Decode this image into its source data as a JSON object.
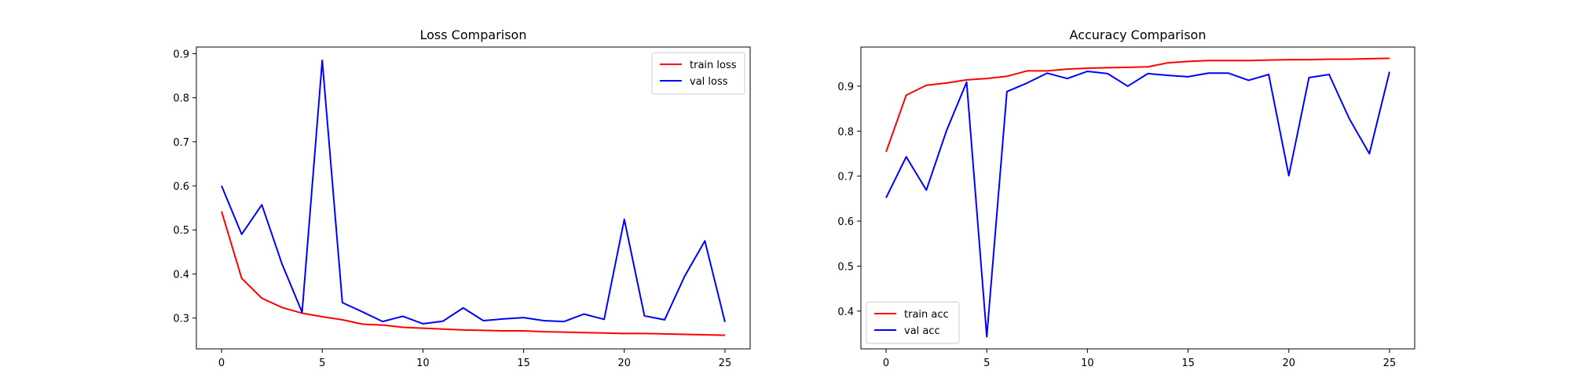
{
  "chart_data": [
    {
      "type": "line",
      "title": "Loss Comparison",
      "xlabel": "",
      "ylabel": "",
      "xlim": [
        -1.25,
        26.25
      ],
      "ylim": [
        0.23,
        0.915
      ],
      "xticks": [
        0,
        5,
        10,
        15,
        20,
        25
      ],
      "yticks": [
        0.3,
        0.4,
        0.5,
        0.6,
        0.7,
        0.8,
        0.9
      ],
      "legend_position": "top-right",
      "grid": false,
      "x": [
        0,
        1,
        2,
        3,
        4,
        5,
        6,
        7,
        8,
        9,
        10,
        11,
        12,
        13,
        14,
        15,
        16,
        17,
        18,
        19,
        20,
        21,
        22,
        23,
        24,
        25
      ],
      "series": [
        {
          "name": "train loss",
          "color": "#ff0000",
          "values": [
            0.542,
            0.39,
            0.345,
            0.324,
            0.311,
            0.303,
            0.296,
            0.286,
            0.284,
            0.279,
            0.277,
            0.275,
            0.273,
            0.272,
            0.271,
            0.271,
            0.269,
            0.268,
            0.267,
            0.266,
            0.265,
            0.265,
            0.264,
            0.263,
            0.262,
            0.261
          ]
        },
        {
          "name": "val loss",
          "color": "#0000ff",
          "values": [
            0.6,
            0.49,
            0.557,
            0.423,
            0.313,
            0.885,
            0.335,
            0.314,
            0.292,
            0.304,
            0.287,
            0.293,
            0.323,
            0.294,
            0.298,
            0.301,
            0.294,
            0.292,
            0.309,
            0.297,
            0.524,
            0.305,
            0.296,
            0.395,
            0.475,
            0.291
          ]
        }
      ]
    },
    {
      "type": "line",
      "title": "Accuracy Comparison",
      "xlabel": "",
      "ylabel": "",
      "xlim": [
        -1.25,
        26.25
      ],
      "ylim": [
        0.316,
        0.987
      ],
      "xticks": [
        0,
        5,
        10,
        15,
        20,
        25
      ],
      "yticks": [
        0.4,
        0.5,
        0.6,
        0.7,
        0.8,
        0.9
      ],
      "legend_position": "bottom-left",
      "grid": false,
      "x": [
        0,
        1,
        2,
        3,
        4,
        5,
        6,
        7,
        8,
        9,
        10,
        11,
        12,
        13,
        14,
        15,
        16,
        17,
        18,
        19,
        20,
        21,
        22,
        23,
        24,
        25
      ],
      "series": [
        {
          "name": "train acc",
          "color": "#ff0000",
          "values": [
            0.754,
            0.88,
            0.902,
            0.907,
            0.914,
            0.917,
            0.922,
            0.934,
            0.934,
            0.938,
            0.94,
            0.941,
            0.942,
            0.943,
            0.952,
            0.955,
            0.957,
            0.957,
            0.957,
            0.958,
            0.959,
            0.959,
            0.96,
            0.96,
            0.961,
            0.962
          ]
        },
        {
          "name": "val acc",
          "color": "#0000ff",
          "values": [
            0.652,
            0.743,
            0.669,
            0.801,
            0.909,
            0.343,
            0.888,
            0.907,
            0.929,
            0.917,
            0.933,
            0.928,
            0.9,
            0.928,
            0.924,
            0.921,
            0.929,
            0.929,
            0.913,
            0.926,
            0.701,
            0.919,
            0.926,
            0.828,
            0.75,
            0.932
          ]
        }
      ]
    }
  ]
}
